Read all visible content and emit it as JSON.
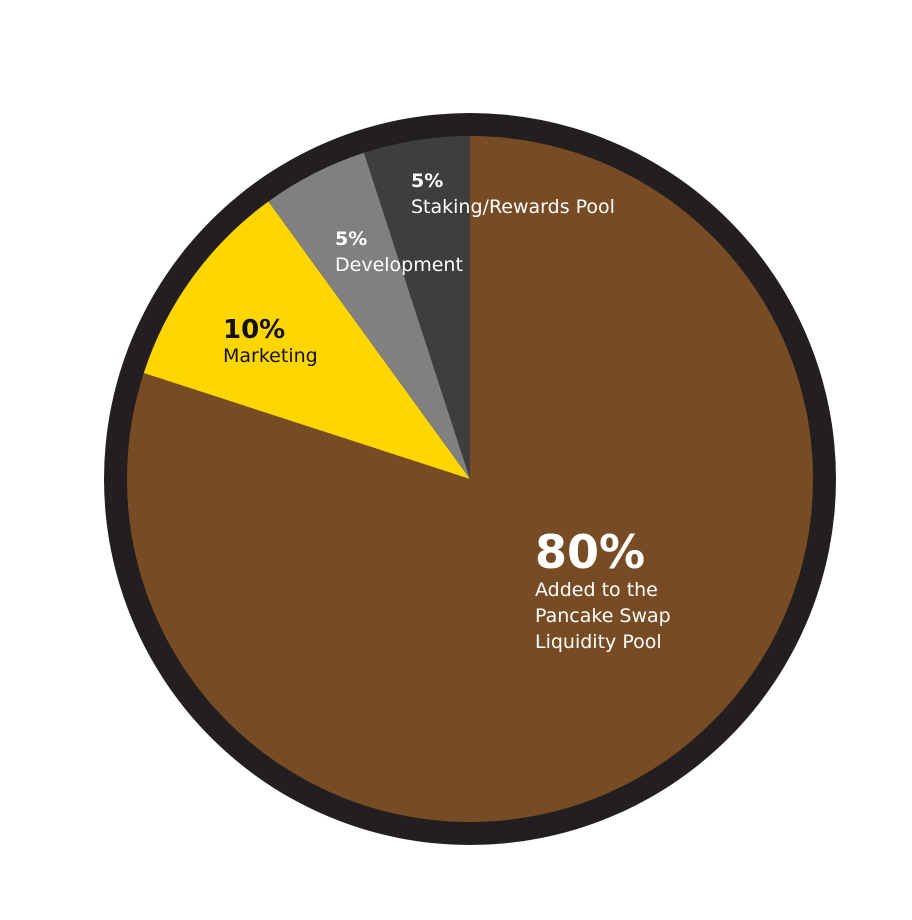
{
  "chart_data": {
    "type": "pie",
    "title": "",
    "slices": [
      {
        "label_lines": [
          "Added to the",
          "Pancake Swap",
          "Liquidity Pool"
        ],
        "percent_label": "80%",
        "value": 80,
        "color": "#774c24",
        "text_color": "#ffffff"
      },
      {
        "label_lines": [
          "Marketing"
        ],
        "percent_label": "10%",
        "value": 10,
        "color": "#ffd600",
        "text_color": "#111111"
      },
      {
        "label_lines": [
          "Development"
        ],
        "percent_label": "5%",
        "value": 5,
        "color": "#808080",
        "text_color": "#ffffff"
      },
      {
        "label_lines": [
          "Staking/Rewards Pool"
        ],
        "percent_label": "5%",
        "value": 5,
        "color": "#3e3e3e",
        "text_color": "#ffffff"
      }
    ],
    "border_color": "#231f20"
  }
}
